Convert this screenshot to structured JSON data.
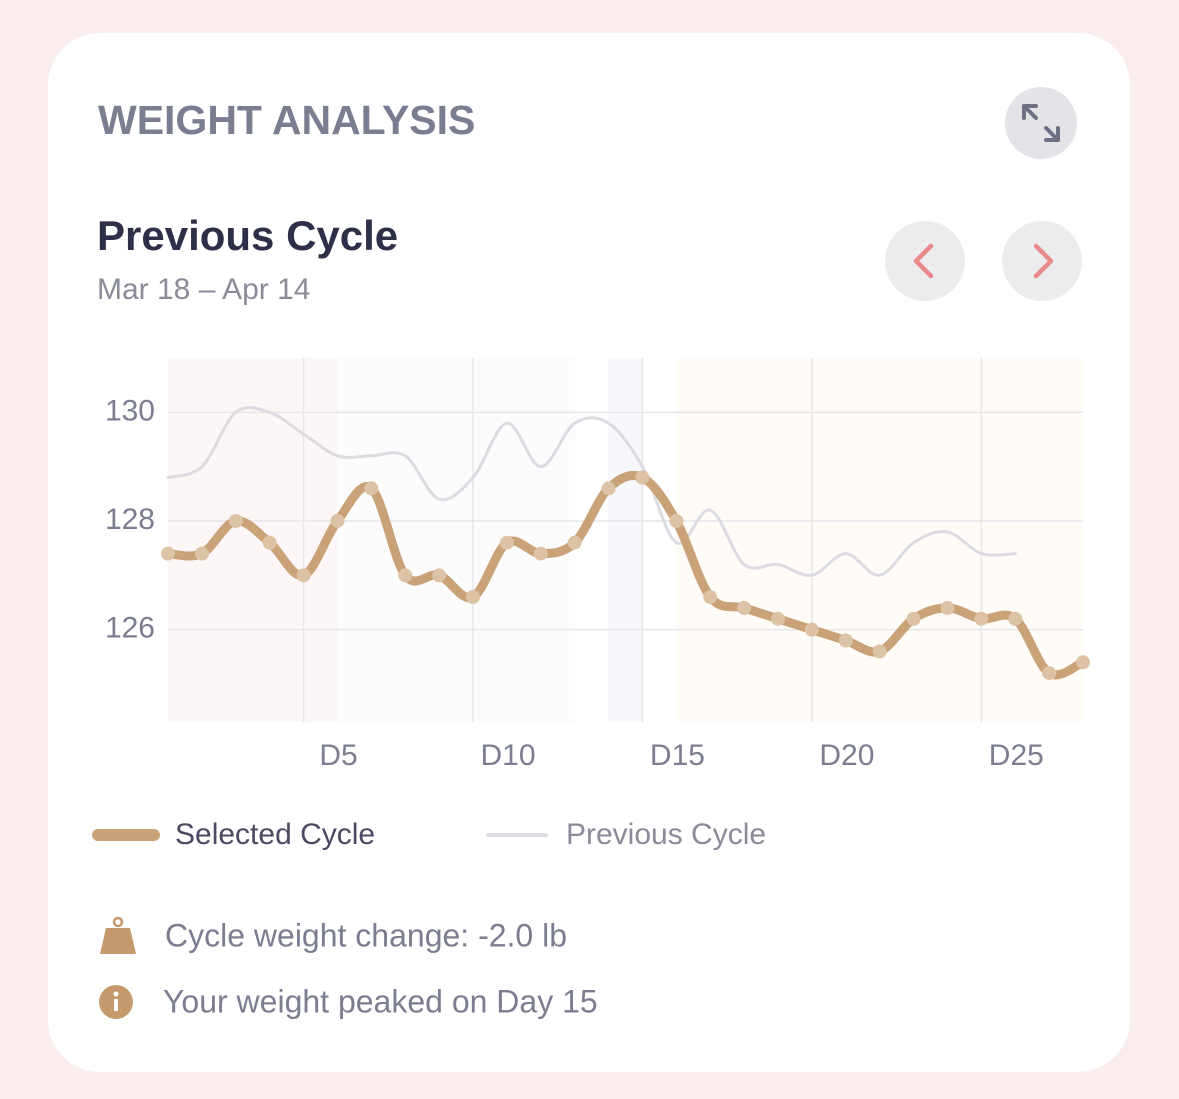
{
  "header": {
    "title": "WEIGHT ANALYSIS"
  },
  "period": {
    "title": "Previous Cycle",
    "range": "Mar 18 – Apr 14"
  },
  "chart_data": {
    "type": "line",
    "x": [
      1,
      2,
      3,
      4,
      5,
      6,
      7,
      8,
      9,
      10,
      11,
      12,
      13,
      14,
      15,
      16,
      17,
      18,
      19,
      20,
      21,
      22,
      23,
      24,
      25,
      26,
      27,
      28
    ],
    "xlim": [
      1,
      28
    ],
    "xticks": [
      {
        "value": 5,
        "label": "D5"
      },
      {
        "value": 10,
        "label": "D10"
      },
      {
        "value": 15,
        "label": "D15"
      },
      {
        "value": 20,
        "label": "D20"
      },
      {
        "value": 25,
        "label": "D25"
      }
    ],
    "ylim": [
      124.3,
      131
    ],
    "yticks": [
      126,
      128,
      130
    ],
    "grid": true,
    "series": [
      {
        "name": "Selected Cycle",
        "color": "#c9a277",
        "values": [
          127.4,
          127.4,
          128.0,
          127.6,
          127.0,
          128.0,
          128.6,
          127.0,
          127.0,
          126.6,
          127.6,
          127.4,
          127.6,
          128.6,
          128.8,
          128.0,
          126.6,
          126.4,
          126.2,
          126.0,
          125.8,
          125.6,
          126.2,
          126.4,
          126.2,
          126.2,
          125.2,
          125.4
        ]
      },
      {
        "name": "Previous Cycle",
        "color": "#dcdbe1",
        "values": [
          128.8,
          129.0,
          130.0,
          130.0,
          129.6,
          129.2,
          129.2,
          129.2,
          128.4,
          128.8,
          129.8,
          129.0,
          129.8,
          129.8,
          129.0,
          127.6,
          128.2,
          127.2,
          127.2,
          127.0,
          127.4,
          127.0,
          127.6,
          127.8,
          127.4,
          127.4,
          null,
          null
        ]
      }
    ]
  },
  "insights": [
    {
      "text": "Cycle weight change: -2.0 lb"
    },
    {
      "text": "Your weight peaked on Day 15"
    }
  ]
}
